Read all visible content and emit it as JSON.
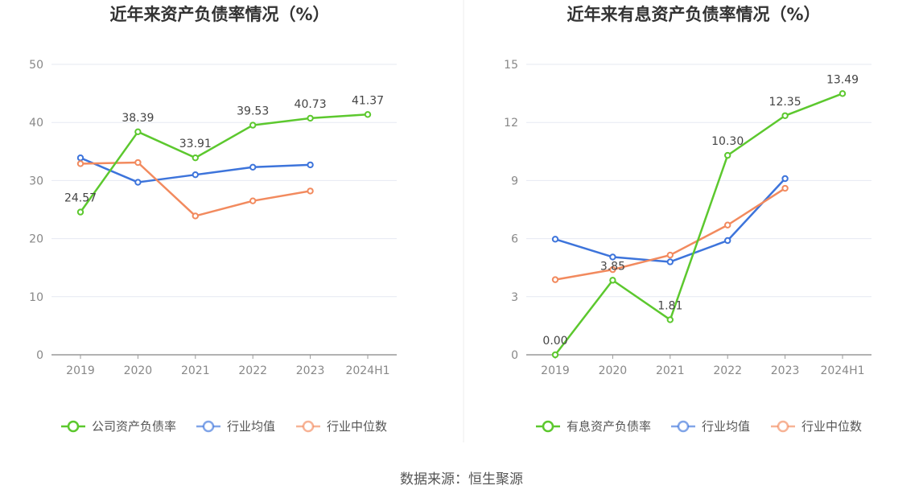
{
  "footer": {
    "source": "数据来源：恒生聚源"
  },
  "chart_data": [
    {
      "type": "line",
      "title": "近年来资产负债率情况（%）",
      "categories": [
        "2019",
        "2020",
        "2021",
        "2022",
        "2023",
        "2024H1"
      ],
      "ylim": [
        0,
        50
      ],
      "yticks": [
        0,
        10,
        20,
        30,
        40,
        50
      ],
      "grid": true,
      "legend_position": "bottom",
      "series": [
        {
          "name": "公司资产负债率",
          "color": "#5cc82e",
          "labeled": true,
          "values": [
            24.57,
            38.39,
            33.91,
            39.53,
            40.73,
            41.37
          ],
          "labels": [
            "24.57",
            "38.39",
            "33.91",
            "39.53",
            "40.73",
            "41.37"
          ]
        },
        {
          "name": "行业均值",
          "color": "#3d74db",
          "labeled": false,
          "values": [
            33.9,
            29.7,
            31.0,
            32.3,
            32.7,
            null
          ]
        },
        {
          "name": "行业中位数",
          "color": "#f28a5e",
          "labeled": false,
          "values": [
            32.9,
            33.1,
            23.9,
            26.5,
            28.2,
            null
          ]
        }
      ]
    },
    {
      "type": "line",
      "title": "近年来有息资产负债率情况（%）",
      "categories": [
        "2019",
        "2020",
        "2021",
        "2022",
        "2023",
        "2024H1"
      ],
      "ylim": [
        0,
        15
      ],
      "yticks": [
        0,
        3,
        6,
        9,
        12,
        15
      ],
      "grid": true,
      "legend_position": "bottom",
      "series": [
        {
          "name": "有息资产负债率",
          "color": "#5cc82e",
          "labeled": true,
          "values": [
            0.0,
            3.85,
            1.81,
            10.3,
            12.35,
            13.49
          ],
          "labels": [
            "0.00",
            "3.85",
            "1.81",
            "10.30",
            "12.35",
            "13.49"
          ]
        },
        {
          "name": "行业均值",
          "color": "#3d74db",
          "labeled": false,
          "values": [
            5.97,
            5.05,
            4.8,
            5.9,
            9.1,
            null
          ]
        },
        {
          "name": "行业中位数",
          "color": "#f28a5e",
          "labeled": false,
          "values": [
            3.88,
            4.4,
            5.15,
            6.7,
            8.6,
            null
          ]
        }
      ]
    }
  ]
}
